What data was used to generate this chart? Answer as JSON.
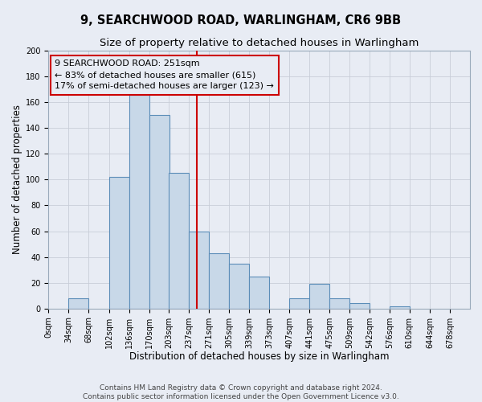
{
  "title_line1": "9, SEARCHWOOD ROAD, WARLINGHAM, CR6 9BB",
  "title_line2": "Size of property relative to detached houses in Warlingham",
  "xlabel": "Distribution of detached houses by size in Warlingham",
  "ylabel": "Number of detached properties",
  "bin_labels": [
    "0sqm",
    "34sqm",
    "68sqm",
    "102sqm",
    "136sqm",
    "170sqm",
    "203sqm",
    "237sqm",
    "271sqm",
    "305sqm",
    "339sqm",
    "373sqm",
    "407sqm",
    "441sqm",
    "475sqm",
    "509sqm",
    "542sqm",
    "576sqm",
    "610sqm",
    "644sqm",
    "678sqm"
  ],
  "bin_edges": [
    0,
    34,
    68,
    102,
    136,
    170,
    203,
    237,
    271,
    305,
    339,
    373,
    407,
    441,
    475,
    509,
    542,
    576,
    610,
    644,
    678
  ],
  "bar_heights": [
    0,
    8,
    0,
    102,
    166,
    150,
    105,
    60,
    43,
    35,
    25,
    0,
    8,
    19,
    8,
    4,
    0,
    2,
    0,
    0,
    0
  ],
  "bar_color": "#c8d8e8",
  "bar_edge_color": "#5b8db8",
  "vline_x": 251,
  "vline_color": "#cc0000",
  "annotation_box_text": "9 SEARCHWOOD ROAD: 251sqm\n← 83% of detached houses are smaller (615)\n17% of semi-detached houses are larger (123) →",
  "ylim": [
    0,
    200
  ],
  "yticks": [
    0,
    20,
    40,
    60,
    80,
    100,
    120,
    140,
    160,
    180,
    200
  ],
  "grid_color": "#c8cdd8",
  "bg_color": "#e8ecf4",
  "footer_line1": "Contains HM Land Registry data © Crown copyright and database right 2024.",
  "footer_line2": "Contains public sector information licensed under the Open Government Licence v3.0.",
  "title_fontsize": 10.5,
  "subtitle_fontsize": 9.5,
  "axis_label_fontsize": 8.5,
  "tick_fontsize": 7,
  "annotation_fontsize": 8,
  "footer_fontsize": 6.5
}
